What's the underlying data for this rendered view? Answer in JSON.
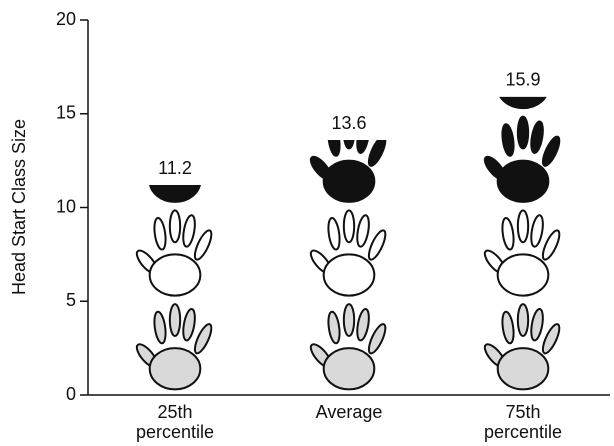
{
  "chart_data": {
    "type": "pictogram",
    "y_label": "Head Start Class Size",
    "categories": [
      "25th percentile",
      "Average",
      "75th percentile"
    ],
    "values": [
      11.2,
      13.6,
      15.9
    ],
    "unit_per_icon": 5,
    "ylim": [
      0,
      20
    ],
    "yticks": [
      0,
      5,
      10,
      15,
      20
    ]
  }
}
